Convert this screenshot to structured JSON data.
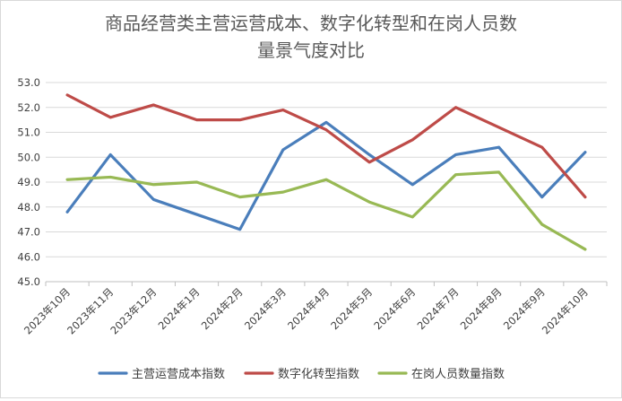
{
  "chart_data": {
    "type": "line",
    "title_lines": [
      "商品经营类主营运营成本、数字化转型和在岗人员数",
      "量景气度对比"
    ],
    "xlabel": "",
    "ylabel": "",
    "categories": [
      "2023年10月",
      "2023年11月",
      "2023年12月",
      "2024年1月",
      "2024年2月",
      "2024年3月",
      "2024年4月",
      "2024年5月",
      "2024年6月",
      "2024年7月",
      "2024年8月",
      "2024年9月",
      "2024年10月"
    ],
    "ylim": [
      45.0,
      53.0
    ],
    "yticks": [
      "45.0",
      "46.0",
      "47.0",
      "48.0",
      "49.0",
      "50.0",
      "51.0",
      "52.0",
      "53.0"
    ],
    "grid": true,
    "legend_position": "bottom",
    "series": [
      {
        "name": "主营运营成本指数",
        "color": "#4a7ebb",
        "values": [
          47.8,
          50.1,
          48.3,
          47.7,
          47.1,
          50.3,
          51.4,
          50.1,
          48.9,
          50.1,
          50.4,
          48.4,
          50.2
        ]
      },
      {
        "name": "数字化转型指数",
        "color": "#be4b48",
        "values": [
          52.5,
          51.6,
          52.1,
          51.5,
          51.5,
          51.9,
          51.1,
          49.8,
          50.7,
          52.0,
          51.2,
          50.4,
          48.4
        ]
      },
      {
        "name": "在岗人员数量指数",
        "color": "#98b954",
        "values": [
          49.1,
          49.2,
          48.9,
          49.0,
          48.4,
          48.6,
          49.1,
          48.2,
          47.6,
          49.3,
          49.4,
          47.3,
          46.3
        ]
      }
    ]
  }
}
